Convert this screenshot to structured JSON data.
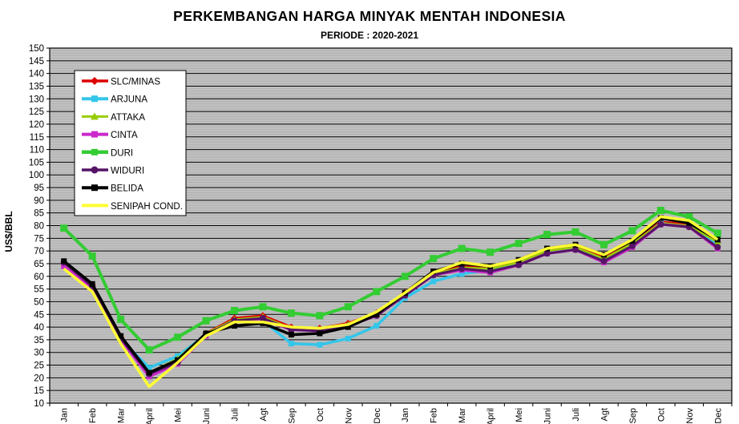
{
  "chart_data": {
    "type": "line",
    "title": "PERKEMBANGAN HARGA MINYAK MENTAH INDONESIA",
    "subtitle": "PERIODE : 2020-2021",
    "ylabel": "US$/BBL",
    "xlabel": "",
    "x": [
      "Jan",
      "Feb",
      "Mar",
      "April",
      "Mei",
      "Juni",
      "Juli",
      "Agt",
      "Sep",
      "Oct",
      "Nov",
      "Dec",
      "Jan",
      "Feb",
      "Mar",
      "April",
      "Mei",
      "Juni",
      "Juli",
      "Agt",
      "Sep",
      "Oct",
      "Nov",
      "Dec"
    ],
    "ylim": [
      10,
      150
    ],
    "ytick_step": 5,
    "grid": "major-horizontal-black-with-faint-minor",
    "plot_bg": "#c0c0c0",
    "legend_position": "upper-left-inside",
    "series": [
      {
        "name": "SLC/MINAS",
        "color": "#dd0000",
        "marker": "diamond",
        "line_width": 3,
        "values": [
          65,
          56.5,
          36,
          21.5,
          27,
          37.5,
          43.5,
          44.5,
          40,
          39.5,
          41.5,
          45.5,
          53.5,
          61.5,
          64,
          63.5,
          66,
          70.5,
          72,
          67.5,
          73.5,
          81.5,
          80.5,
          73.5
        ]
      },
      {
        "name": "ARJUNA",
        "color": "#33c6ea",
        "marker": "square",
        "line_width": 3.5,
        "values": [
          64.5,
          55.5,
          35,
          24,
          28.5,
          37,
          42,
          42.5,
          33.5,
          33,
          35.5,
          40.5,
          51.5,
          58,
          61,
          62.5,
          65,
          69.5,
          71,
          66.5,
          72.5,
          81,
          79.5,
          73
        ]
      },
      {
        "name": "ATTAKA",
        "color": "#99cc00",
        "marker": "triangle",
        "line_width": 2.5,
        "values": [
          65,
          56,
          35.5,
          22,
          27.5,
          37.5,
          43,
          44,
          39.5,
          39,
          41,
          45,
          53,
          61,
          63.5,
          63,
          65.5,
          70,
          71.5,
          67,
          73,
          81,
          80,
          73.5
        ]
      },
      {
        "name": "CINTA",
        "color": "#cc29cc",
        "marker": "square",
        "line_width": 3.5,
        "values": [
          64,
          55.5,
          35,
          20.5,
          25.5,
          36.5,
          42,
          43,
          39,
          38.5,
          40.5,
          44.5,
          52.5,
          60.5,
          62.5,
          61.5,
          64.5,
          69,
          70.5,
          65.5,
          71.5,
          80.5,
          79.5,
          71
        ]
      },
      {
        "name": "DURI",
        "color": "#33cc33",
        "marker": "square",
        "line_width": 4,
        "values": [
          79,
          68,
          43,
          31,
          36,
          42.5,
          46.5,
          48,
          45.5,
          44.5,
          48,
          54,
          60,
          67,
          71,
          69.5,
          73,
          76.5,
          77.5,
          72.5,
          78,
          86,
          83.5,
          77
        ]
      },
      {
        "name": "WIDURI",
        "color": "#551466",
        "marker": "circle",
        "line_width": 3,
        "values": [
          65.5,
          56,
          35.5,
          21.5,
          26,
          37,
          42.5,
          43.5,
          39,
          38.5,
          40.5,
          44.5,
          52.5,
          60.5,
          63,
          62,
          64.5,
          69,
          70.5,
          66,
          72,
          80.5,
          79.5,
          71.5
        ]
      },
      {
        "name": "BELIDA",
        "color": "#000000",
        "marker": "square",
        "line_width": 3.5,
        "values": [
          66,
          57,
          36.5,
          22,
          27,
          37.5,
          40.5,
          41.5,
          37,
          37.5,
          40,
          45,
          53.5,
          62,
          65,
          64,
          66.5,
          71,
          72.5,
          68.5,
          74,
          83,
          81,
          74.5
        ]
      },
      {
        "name": "SENIPAH COND.",
        "color": "#ffff33",
        "marker": "none",
        "line_width": 3.5,
        "values": [
          63,
          54,
          33.5,
          16.5,
          26,
          36.5,
          42,
          42,
          40,
          39.5,
          41,
          46,
          53.5,
          61.5,
          65.5,
          64,
          66.5,
          71,
          72.5,
          68.5,
          74.5,
          83.5,
          82,
          74.5
        ]
      }
    ]
  }
}
